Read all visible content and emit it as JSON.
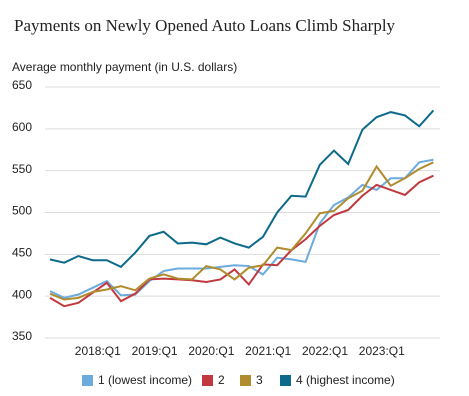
{
  "chart_data": {
    "type": "line",
    "title": "Payments on Newly Opened Auto Loans Climb Sharply",
    "y_label": "Average monthly payment (in U.S. dollars)",
    "categories": [
      null,
      null,
      null,
      null,
      "2018:Q1",
      null,
      null,
      null,
      "2019:Q1",
      null,
      null,
      null,
      "2020:Q1",
      null,
      null,
      null,
      "2021:Q1",
      null,
      null,
      null,
      "2022:Q1",
      null,
      null,
      null,
      "2023:Q1",
      null,
      null,
      null
    ],
    "series": [
      {
        "name": "1 (lowest income)",
        "color": "#6cabdd",
        "values": [
          406,
          398,
          402,
          410,
          418,
          401,
          402,
          418,
          430,
          433,
          433,
          433,
          435,
          437,
          436,
          426,
          446,
          444,
          441,
          487,
          509,
          518,
          533,
          527,
          541,
          541,
          560,
          563
        ]
      },
      {
        "name": "2",
        "color": "#c0393f",
        "values": [
          398,
          388,
          392,
          404,
          416,
          394,
          403,
          420,
          421,
          420,
          419,
          417,
          420,
          432,
          414,
          438,
          437,
          455,
          468,
          484,
          497,
          503,
          520,
          533,
          527,
          521,
          536,
          544
        ]
      },
      {
        "name": "3",
        "color": "#b08c2e",
        "values": [
          403,
          396,
          398,
          405,
          408,
          412,
          407,
          421,
          426,
          421,
          420,
          436,
          432,
          420,
          434,
          437,
          458,
          455,
          475,
          499,
          502,
          517,
          526,
          555,
          532,
          541,
          552,
          560
        ]
      },
      {
        "name": "4 (highest income)",
        "color": "#0e6a8a",
        "values": [
          444,
          440,
          448,
          443,
          443,
          435,
          452,
          472,
          477,
          463,
          464,
          462,
          470,
          463,
          458,
          471,
          500,
          520,
          519,
          557,
          574,
          558,
          599,
          614,
          620,
          616,
          603,
          622
        ]
      }
    ],
    "ylim": [
      350,
      650
    ],
    "yticks": [
      350,
      400,
      450,
      500,
      550,
      600,
      650
    ],
    "grid": true
  }
}
